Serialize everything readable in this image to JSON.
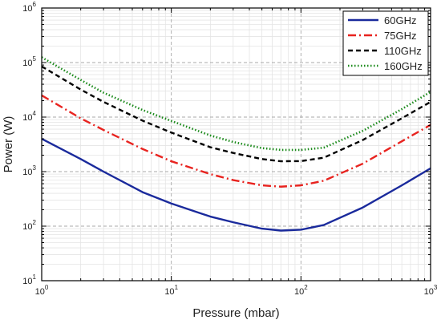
{
  "chart_data": {
    "type": "line",
    "title": "",
    "xlabel": "Pressure (mbar)",
    "ylabel": "Power (W)",
    "xscale": "log",
    "yscale": "log",
    "xlim": [
      1,
      1000
    ],
    "ylim": [
      10,
      1000000
    ],
    "x_ticks": [
      {
        "base": "10",
        "exp": "0",
        "value": 1
      },
      {
        "base": "10",
        "exp": "1",
        "value": 10
      },
      {
        "base": "10",
        "exp": "2",
        "value": 100
      },
      {
        "base": "10",
        "exp": "3",
        "value": 1000
      }
    ],
    "y_ticks": [
      {
        "base": "10",
        "exp": "1",
        "value": 10
      },
      {
        "base": "10",
        "exp": "2",
        "value": 100
      },
      {
        "base": "10",
        "exp": "3",
        "value": 1000
      },
      {
        "base": "10",
        "exp": "4",
        "value": 10000
      },
      {
        "base": "10",
        "exp": "5",
        "value": 100000
      },
      {
        "base": "10",
        "exp": "6",
        "value": 1000000
      }
    ],
    "grid": true,
    "legend_position": "top-right",
    "series": [
      {
        "name": "60GHz",
        "color": "#1a2a9c",
        "dash": "solid",
        "x": [
          1,
          2,
          3,
          6,
          10,
          20,
          30,
          50,
          70,
          100,
          150,
          300,
          600,
          1000
        ],
        "y": [
          4000,
          1700,
          1000,
          420,
          260,
          150,
          118,
          90,
          83,
          86,
          105,
          220,
          560,
          1150
        ]
      },
      {
        "name": "75GHz",
        "color": "#e8231f",
        "dash": "dashdot",
        "x": [
          1,
          2,
          3,
          6,
          10,
          20,
          30,
          50,
          70,
          100,
          150,
          300,
          600,
          1000
        ],
        "y": [
          25000,
          9500,
          5800,
          2600,
          1550,
          900,
          700,
          560,
          530,
          560,
          680,
          1400,
          3600,
          7200
        ]
      },
      {
        "name": "110GHz",
        "color": "#000000",
        "dash": "dash",
        "x": [
          1,
          2,
          3,
          6,
          10,
          20,
          30,
          50,
          70,
          100,
          150,
          300,
          600,
          1000
        ],
        "y": [
          85000,
          32000,
          19000,
          8600,
          5200,
          2800,
          2200,
          1700,
          1550,
          1560,
          1800,
          3800,
          9500,
          19000
        ]
      },
      {
        "name": "160GHz",
        "color": "#1a8a1a",
        "dash": "dot",
        "x": [
          1,
          2,
          3,
          6,
          10,
          20,
          30,
          50,
          70,
          100,
          150,
          300,
          600,
          1000
        ],
        "y": [
          125000,
          48000,
          28000,
          13500,
          8500,
          4600,
          3500,
          2700,
          2500,
          2500,
          2750,
          5600,
          14000,
          29000
        ]
      }
    ]
  }
}
